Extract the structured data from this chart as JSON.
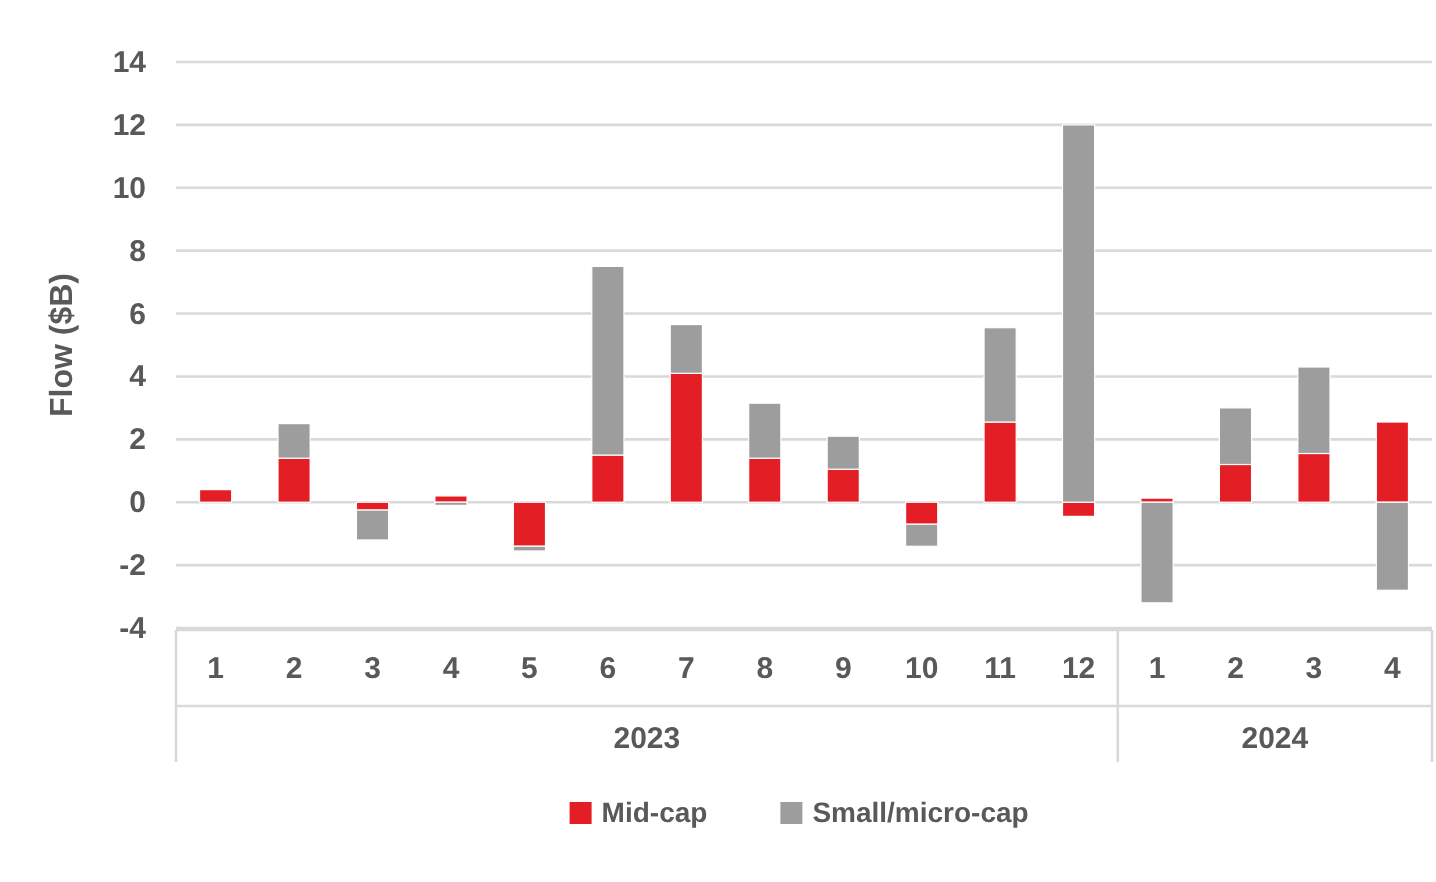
{
  "chart_data": {
    "type": "bar",
    "stacked": true,
    "ylabel": "Flow ($B)",
    "categories": [
      "1",
      "2",
      "3",
      "4",
      "5",
      "6",
      "7",
      "8",
      "9",
      "10",
      "11",
      "12",
      "1",
      "2",
      "3",
      "4"
    ],
    "series": [
      {
        "name": "Mid-cap",
        "color": "#e31e24",
        "values": [
          0.4,
          1.4,
          -0.25,
          0.2,
          -1.4,
          1.5,
          4.1,
          1.4,
          1.05,
          -0.7,
          2.55,
          -0.45,
          0.13,
          1.2,
          1.55,
          2.55
        ]
      },
      {
        "name": "Small/micro-cap",
        "color": "#9d9d9d",
        "values": [
          null,
          1.1,
          -0.95,
          -0.1,
          -0.15,
          6.0,
          1.55,
          1.75,
          1.05,
          -0.7,
          3.0,
          12.0,
          -3.2,
          1.8,
          2.75,
          -2.8
        ]
      }
    ],
    "annotations": [
      "2023",
      "2024"
    ],
    "ylim": [
      -4,
      14
    ],
    "yticks": [
      -4,
      -2,
      0,
      2,
      4,
      6,
      8,
      10,
      12,
      14
    ],
    "grid": "y",
    "legend": "bottom"
  }
}
